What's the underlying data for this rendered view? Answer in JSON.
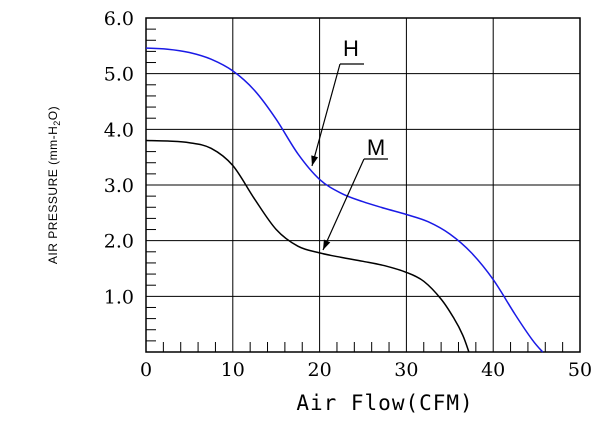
{
  "chart_data": {
    "type": "line",
    "title": "",
    "xlabel": "Air Flow(CFM)",
    "ylabel_parts": {
      "main": "AIR PRESSURE (mm-H",
      "sub": "2",
      "tail": "O)"
    },
    "xlim": [
      0,
      50
    ],
    "ylim": [
      0,
      6
    ],
    "x_ticks": [
      0,
      10,
      20,
      30,
      40,
      50
    ],
    "x_tick_labels": [
      "0",
      "10",
      "20",
      "30",
      "40",
      "50"
    ],
    "y_ticks": [
      1,
      2,
      3,
      4,
      5,
      6
    ],
    "y_tick_labels": [
      "1.0",
      "2.0",
      "3.0",
      "4.0",
      "5.0",
      "6.0"
    ],
    "grid": true,
    "series": [
      {
        "name": "H",
        "color": "#1a1ae6",
        "x": [
          0,
          2.5,
          5,
          7.5,
          10,
          12.5,
          15,
          17.5,
          20,
          22.5,
          25,
          27.5,
          30,
          32.5,
          35,
          37.5,
          40,
          42.5,
          44.5,
          45.7
        ],
        "y": [
          5.46,
          5.44,
          5.38,
          5.26,
          5.05,
          4.7,
          4.18,
          3.56,
          3.1,
          2.85,
          2.7,
          2.58,
          2.47,
          2.34,
          2.12,
          1.78,
          1.3,
          0.68,
          0.22,
          0.0
        ]
      },
      {
        "name": "M",
        "color": "#000000",
        "x": [
          0,
          2.5,
          5,
          7.5,
          10,
          12.5,
          15,
          17.5,
          20,
          22.5,
          25,
          27.5,
          30,
          32,
          34,
          35.5,
          36.5,
          37.2
        ],
        "y": [
          3.8,
          3.79,
          3.76,
          3.66,
          3.35,
          2.75,
          2.2,
          1.9,
          1.78,
          1.7,
          1.63,
          1.55,
          1.43,
          1.27,
          0.95,
          0.6,
          0.3,
          0.0
        ]
      }
    ]
  }
}
